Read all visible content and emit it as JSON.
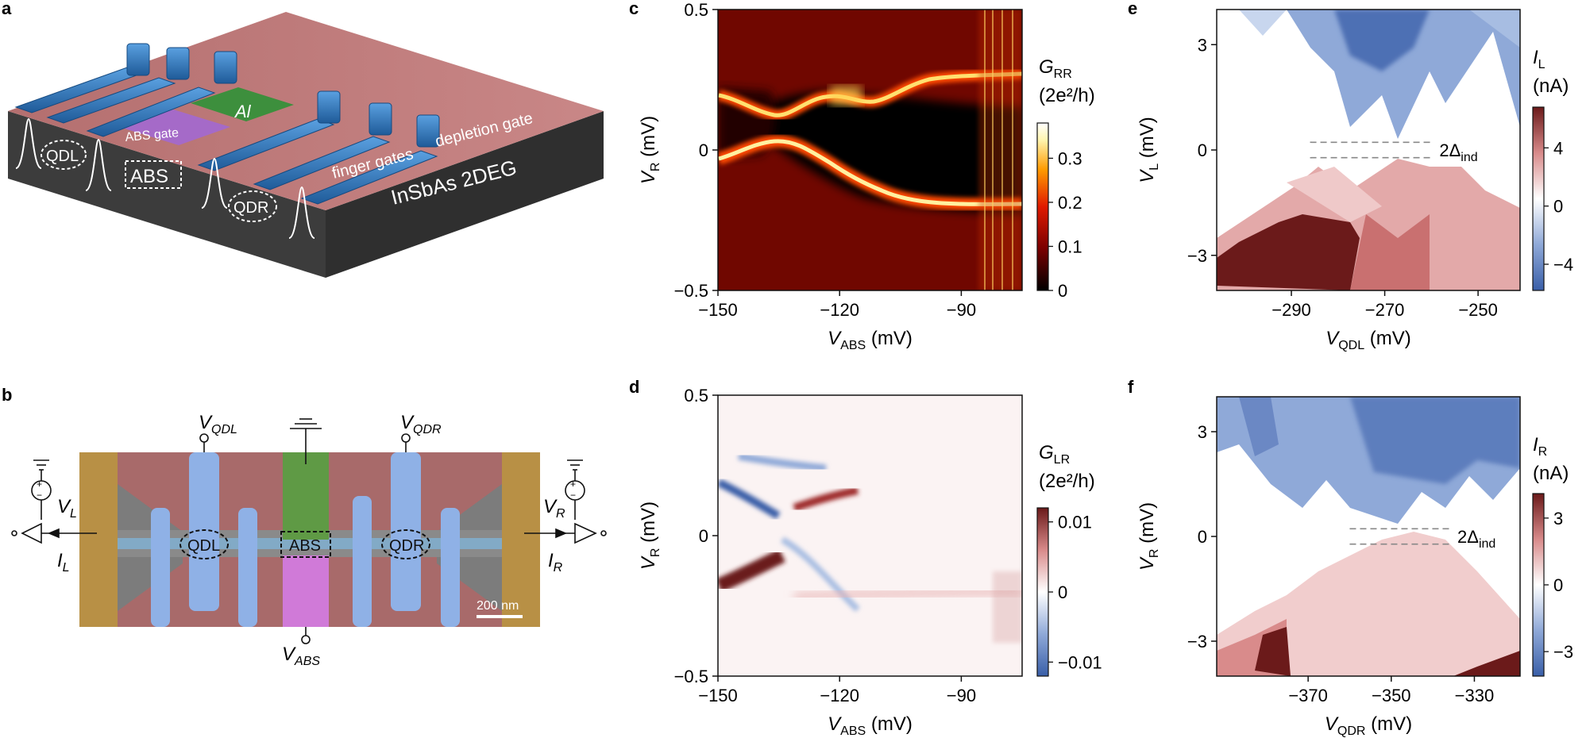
{
  "panel_labels": {
    "a": "a",
    "b": "b",
    "c": "c",
    "d": "d",
    "e": "e",
    "f": "f"
  },
  "device_schematic": {
    "labels": {
      "al": "Al",
      "abs_gate": "ABS gate",
      "depletion_gate": "depletion gate",
      "finger_gates": "finger gates",
      "substrate": "InSbAs 2DEG",
      "qdl": "QDL",
      "abs": "ABS",
      "qdr": "QDR"
    }
  },
  "sem_image": {
    "labels": {
      "qdl": "QDL",
      "abs": "ABS",
      "qdr": "QDR",
      "scale": "200 nm"
    },
    "terminals": {
      "v_qdl": {
        "main": "V",
        "sub": "QDL"
      },
      "v_qdr": {
        "main": "V",
        "sub": "QDR"
      },
      "v_abs": {
        "main": "V",
        "sub": "ABS"
      },
      "v_l": {
        "main": "V",
        "sub": "L"
      },
      "v_r": {
        "main": "V",
        "sub": "R"
      },
      "i_l": {
        "main": "I",
        "sub": "L"
      },
      "i_r": {
        "main": "I",
        "sub": "R"
      }
    }
  },
  "colors": {
    "hot_map": [
      "#000000",
      "#7a0000",
      "#e01a00",
      "#ff9a00",
      "#fff5b0",
      "#ffffff"
    ],
    "diverging_map": [
      "#3a5fa8",
      "#8fa9d8",
      "#ffffff",
      "#d88a8a",
      "#6b1a1a"
    ],
    "gate_blue": "#3b82c8",
    "depletion_red": "#c86b6b",
    "al_green": "#3d8f3d",
    "abs_purple": "#a56ac8",
    "substrate": "#4a4a4a"
  },
  "chart_data": [
    {
      "id": "c",
      "type": "heatmap",
      "x_label": {
        "main": "V",
        "sub": "ABS",
        "unit": " (mV)"
      },
      "y_label": {
        "main": "V",
        "sub": "R",
        "unit": " (mV)"
      },
      "xlim": [
        -150,
        -75
      ],
      "ylim": [
        -0.5,
        0.5
      ],
      "x_ticks": [
        -150,
        -120,
        -90
      ],
      "x_tick_labels": [
        "−150",
        "−120",
        "−90"
      ],
      "y_ticks": [
        -0.5,
        0,
        0.5
      ],
      "y_tick_labels": [
        "−0.5",
        "0",
        "0.5"
      ],
      "colorbar": {
        "title_main": "G",
        "title_sub": "RR",
        "units": "(2e²/h)",
        "range": [
          0,
          0.38
        ],
        "ticks": [
          0,
          0.1,
          0.2,
          0.3
        ],
        "tick_labels": [
          "0",
          "0.1",
          "0.2",
          "0.3"
        ],
        "colormap": "hot"
      }
    },
    {
      "id": "d",
      "type": "heatmap",
      "x_label": {
        "main": "V",
        "sub": "ABS",
        "unit": " (mV)"
      },
      "y_label": {
        "main": "V",
        "sub": "R",
        "unit": " (mV)"
      },
      "xlim": [
        -150,
        -75
      ],
      "ylim": [
        -0.5,
        0.5
      ],
      "x_ticks": [
        -150,
        -120,
        -90
      ],
      "x_tick_labels": [
        "−150",
        "−120",
        "−90"
      ],
      "y_ticks": [
        -0.5,
        0,
        0.5
      ],
      "y_tick_labels": [
        "−0.5",
        "0",
        "0.5"
      ],
      "colorbar": {
        "title_main": "G",
        "title_sub": "LR",
        "units": "(2e²/h)",
        "range": [
          -0.012,
          0.012
        ],
        "ticks": [
          -0.01,
          0,
          0.01
        ],
        "tick_labels": [
          "−0.01",
          "0",
          "0.01"
        ],
        "colormap": "diverging"
      }
    },
    {
      "id": "e",
      "type": "heatmap",
      "x_label": {
        "main": "V",
        "sub": "QDL",
        "unit": " (mV)"
      },
      "y_label": {
        "main": "V",
        "sub": "L",
        "unit": " (mV)"
      },
      "xlim": [
        -306,
        -241
      ],
      "ylim": [
        -4,
        4
      ],
      "x_ticks": [
        -290,
        -270,
        -250
      ],
      "x_tick_labels": [
        "−290",
        "−270",
        "−250"
      ],
      "y_ticks": [
        -3,
        0,
        3
      ],
      "y_tick_labels": [
        "−3",
        "0",
        "3"
      ],
      "annotation": {
        "main": "2Δ",
        "sub": "ind",
        "lines_y": [
          0.22,
          -0.22
        ],
        "x_range": [
          -286,
          -260
        ]
      },
      "colorbar": {
        "title_main": "I",
        "title_sub": "L",
        "units": "(nA)",
        "range": [
          -5.8,
          6.8
        ],
        "ticks": [
          -4,
          0,
          4
        ],
        "tick_labels": [
          "−4",
          "0",
          "4"
        ],
        "colormap": "diverging"
      }
    },
    {
      "id": "f",
      "type": "heatmap",
      "x_label": {
        "main": "V",
        "sub": "QDR",
        "unit": " (mV)"
      },
      "y_label": {
        "main": "V",
        "sub": "R",
        "unit": " (mV)"
      },
      "xlim": [
        -392,
        -319
      ],
      "ylim": [
        -4,
        4
      ],
      "x_ticks": [
        -370,
        -350,
        -330
      ],
      "x_tick_labels": [
        "−370",
        "−350",
        "−330"
      ],
      "y_ticks": [
        -3,
        0,
        3
      ],
      "y_tick_labels": [
        "−3",
        "0",
        "3"
      ],
      "annotation": {
        "main": "2Δ",
        "sub": "ind",
        "lines_y": [
          0.22,
          -0.22
        ],
        "x_range": [
          -360,
          -336
        ]
      },
      "colorbar": {
        "title_main": "I",
        "title_sub": "R",
        "units": "(nA)",
        "range": [
          -4.1,
          4.1
        ],
        "ticks": [
          -3,
          0,
          3
        ],
        "tick_labels": [
          "−3",
          "0",
          "3"
        ],
        "colormap": "diverging"
      }
    }
  ]
}
